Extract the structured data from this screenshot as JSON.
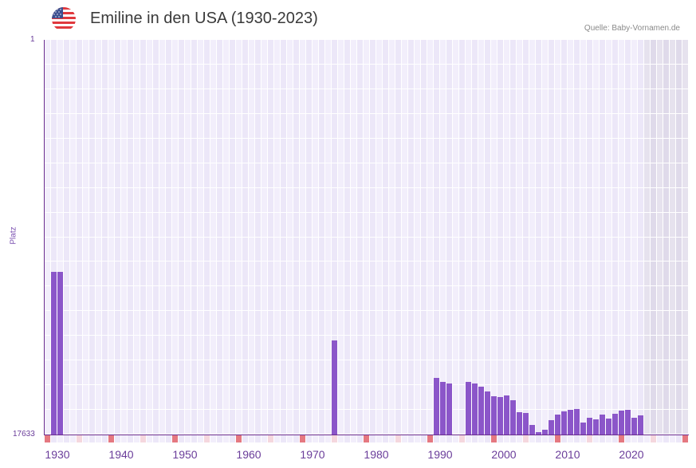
{
  "header": {
    "title": "Emiline in den USA (1930-2023)",
    "source": "Quelle: Baby-Vornamen.de",
    "flag_icon": "us-flag-icon"
  },
  "colors": {
    "bar": "#8b56c9",
    "axis": "#6b2d8f",
    "grid_a": "#f2eefb",
    "grid_b": "#ece7f8",
    "future_a": "#e6e2ee",
    "future_b": "#dfdaea",
    "decade_marker": "#e57880",
    "half_decade_marker": "#f5d7de",
    "label": "#6a3d9a"
  },
  "chart_data": {
    "type": "bar",
    "title": "Emiline in den USA (1930-2023)",
    "xlabel": "",
    "ylabel": "Platz",
    "y_axis_inverted": true,
    "ylim": [
      1,
      17633
    ],
    "ytick_labels": [
      "1",
      "17633"
    ],
    "xtick_labels": [
      "1930",
      "1940",
      "1950",
      "1960",
      "1970",
      "1980",
      "1990",
      "2000",
      "2010",
      "2020"
    ],
    "x_range": [
      1929,
      2029
    ],
    "grid": true,
    "future_shaded_from": 2023,
    "categories": [
      1930,
      1931,
      1974,
      1990,
      1991,
      1992,
      1995,
      1996,
      1997,
      1998,
      1999,
      2000,
      2001,
      2002,
      2003,
      2004,
      2005,
      2006,
      2007,
      2008,
      2009,
      2010,
      2011,
      2012,
      2013,
      2014,
      2015,
      2016,
      2017,
      2018,
      2019,
      2020,
      2021,
      2022
    ],
    "values": [
      10366,
      10366,
      13430,
      15104,
      15282,
      15353,
      15282,
      15353,
      15496,
      15709,
      15923,
      15959,
      15888,
      16101,
      16636,
      16671,
      17206,
      17526,
      17419,
      16992,
      16743,
      16600,
      16529,
      16493,
      17099,
      16885,
      16956,
      16743,
      16921,
      16707,
      16564,
      16529,
      16885,
      16778
    ]
  },
  "yaxis": {
    "top_label": "1",
    "bottom_label": "17633",
    "title": "Platz"
  }
}
